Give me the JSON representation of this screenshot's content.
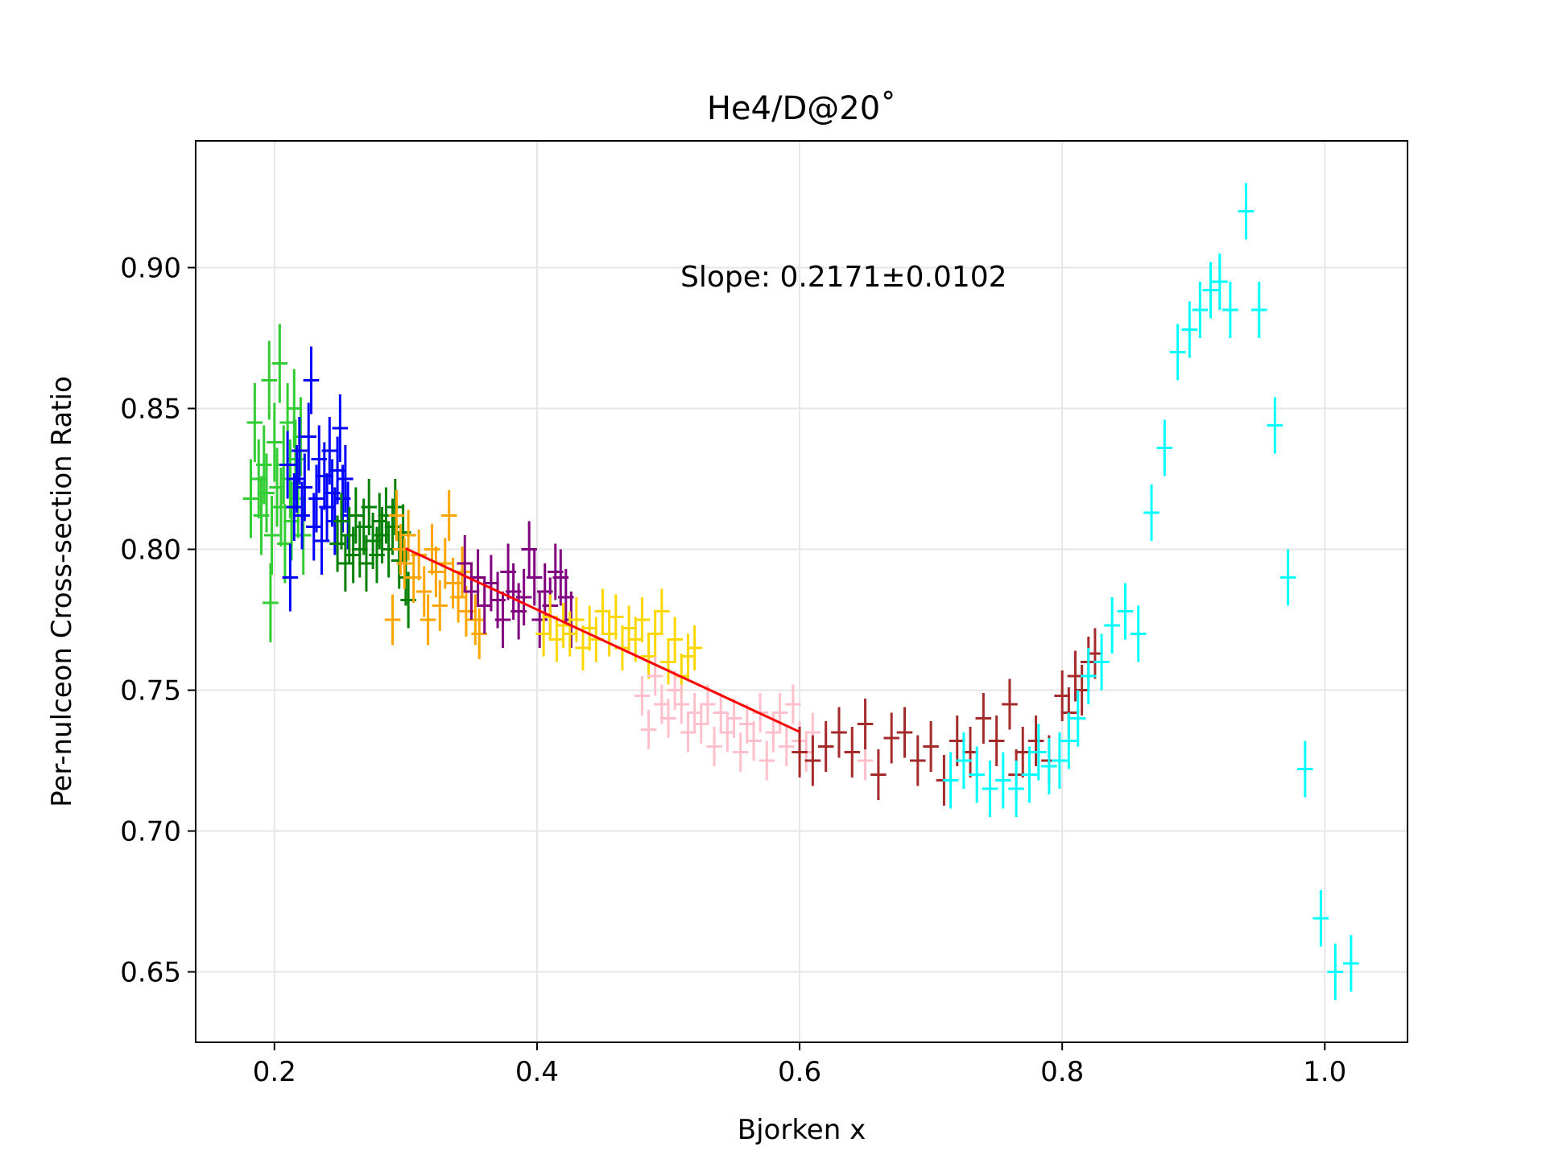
{
  "chart_data": {
    "type": "scatter",
    "title": "He4/D@20˚",
    "xlabel": "Bjorken x",
    "ylabel": "Per-nulceon Cross-section Ratio",
    "xlim": [
      0.14,
      1.063
    ],
    "ylim": [
      0.625,
      0.945
    ],
    "xticks": [
      0.2,
      0.4,
      0.6,
      0.8,
      1.0
    ],
    "xtick_labels": [
      "0.2",
      "0.4",
      "0.6",
      "0.8",
      "1.0"
    ],
    "yticks": [
      0.65,
      0.7,
      0.75,
      0.8,
      0.85,
      0.9
    ],
    "ytick_labels": [
      "0.65",
      "0.70",
      "0.75",
      "0.80",
      "0.85",
      "0.90"
    ],
    "grid": true,
    "annotation": "Slope: 0.2171±0.0102",
    "fit_line": {
      "color": "#ff0000",
      "x": [
        0.3,
        0.6
      ],
      "y": [
        0.8003,
        0.7352
      ]
    },
    "series": [
      {
        "color": "#32cd32",
        "xerr": 0.006,
        "yerr": 0.014,
        "points": [
          [
            0.182,
            0.818
          ],
          [
            0.185,
            0.845
          ],
          [
            0.188,
            0.825
          ],
          [
            0.19,
            0.812
          ],
          [
            0.192,
            0.83
          ],
          [
            0.194,
            0.82
          ],
          [
            0.196,
            0.86
          ],
          [
            0.197,
            0.781
          ],
          [
            0.198,
            0.805
          ],
          [
            0.2,
            0.838
          ],
          [
            0.202,
            0.822
          ],
          [
            0.204,
            0.866
          ],
          [
            0.205,
            0.815
          ],
          [
            0.207,
            0.83
          ],
          [
            0.208,
            0.802
          ],
          [
            0.21,
            0.845
          ],
          [
            0.212,
            0.825
          ],
          [
            0.213,
            0.81
          ],
          [
            0.215,
            0.85
          ],
          [
            0.216,
            0.832
          ],
          [
            0.218,
            0.818
          ],
          [
            0.22,
            0.84
          ],
          [
            0.222,
            0.805
          ]
        ]
      },
      {
        "color": "#0000ff",
        "xerr": 0.006,
        "yerr": 0.012,
        "points": [
          [
            0.21,
            0.83
          ],
          [
            0.212,
            0.79
          ],
          [
            0.215,
            0.815
          ],
          [
            0.217,
            0.825
          ],
          [
            0.219,
            0.835
          ],
          [
            0.221,
            0.812
          ],
          [
            0.223,
            0.822
          ],
          [
            0.226,
            0.84
          ],
          [
            0.228,
            0.86
          ],
          [
            0.23,
            0.808
          ],
          [
            0.232,
            0.818
          ],
          [
            0.234,
            0.832
          ],
          [
            0.236,
            0.803
          ],
          [
            0.238,
            0.826
          ],
          [
            0.24,
            0.815
          ],
          [
            0.242,
            0.835
          ],
          [
            0.244,
            0.82
          ],
          [
            0.246,
            0.81
          ],
          [
            0.248,
            0.828
          ],
          [
            0.25,
            0.843
          ],
          [
            0.252,
            0.818
          ],
          [
            0.254,
            0.825
          ],
          [
            0.256,
            0.812
          ]
        ]
      },
      {
        "color": "#008000",
        "xerr": 0.006,
        "yerr": 0.01,
        "points": [
          [
            0.248,
            0.802
          ],
          [
            0.251,
            0.81
          ],
          [
            0.254,
            0.795
          ],
          [
            0.257,
            0.805
          ],
          [
            0.26,
            0.798
          ],
          [
            0.262,
            0.812
          ],
          [
            0.265,
            0.8
          ],
          [
            0.268,
            0.808
          ],
          [
            0.27,
            0.795
          ],
          [
            0.272,
            0.815
          ],
          [
            0.275,
            0.803
          ],
          [
            0.278,
            0.798
          ],
          [
            0.28,
            0.81
          ],
          [
            0.282,
            0.805
          ],
          [
            0.285,
            0.812
          ],
          [
            0.287,
            0.8
          ],
          [
            0.29,
            0.808
          ],
          [
            0.292,
            0.815
          ],
          [
            0.295,
            0.796
          ],
          [
            0.298,
            0.806
          ],
          [
            0.3,
            0.79
          ],
          [
            0.302,
            0.782
          ]
        ]
      },
      {
        "color": "#ffa500",
        "xerr": 0.006,
        "yerr": 0.009,
        "points": [
          [
            0.29,
            0.775
          ],
          [
            0.293,
            0.812
          ],
          [
            0.296,
            0.8
          ],
          [
            0.299,
            0.795
          ],
          [
            0.302,
            0.805
          ],
          [
            0.306,
            0.79
          ],
          [
            0.31,
            0.798
          ],
          [
            0.314,
            0.785
          ],
          [
            0.317,
            0.775
          ],
          [
            0.32,
            0.8
          ],
          [
            0.323,
            0.792
          ],
          [
            0.326,
            0.78
          ],
          [
            0.33,
            0.795
          ],
          [
            0.333,
            0.812
          ],
          [
            0.336,
            0.788
          ],
          [
            0.34,
            0.783
          ],
          [
            0.343,
            0.792
          ],
          [
            0.346,
            0.778
          ],
          [
            0.35,
            0.785
          ],
          [
            0.353,
            0.775
          ],
          [
            0.356,
            0.77
          ]
        ]
      },
      {
        "color": "#800080",
        "xerr": 0.006,
        "yerr": 0.01,
        "points": [
          [
            0.345,
            0.795
          ],
          [
            0.35,
            0.785
          ],
          [
            0.355,
            0.79
          ],
          [
            0.36,
            0.78
          ],
          [
            0.365,
            0.788
          ],
          [
            0.37,
            0.782
          ],
          [
            0.374,
            0.775
          ],
          [
            0.378,
            0.792
          ],
          [
            0.382,
            0.785
          ],
          [
            0.386,
            0.778
          ],
          [
            0.39,
            0.783
          ],
          [
            0.394,
            0.8
          ],
          [
            0.398,
            0.79
          ],
          [
            0.402,
            0.775
          ],
          [
            0.406,
            0.785
          ],
          [
            0.41,
            0.78
          ],
          [
            0.414,
            0.792
          ],
          [
            0.418,
            0.79
          ],
          [
            0.422,
            0.783
          ],
          [
            0.426,
            0.775
          ]
        ]
      },
      {
        "color": "#ffd700",
        "xerr": 0.006,
        "yerr": 0.008,
        "points": [
          [
            0.405,
            0.77
          ],
          [
            0.41,
            0.776
          ],
          [
            0.415,
            0.768
          ],
          [
            0.42,
            0.773
          ],
          [
            0.425,
            0.77
          ],
          [
            0.43,
            0.775
          ],
          [
            0.435,
            0.765
          ],
          [
            0.44,
            0.772
          ],
          [
            0.445,
            0.768
          ],
          [
            0.45,
            0.778
          ],
          [
            0.455,
            0.77
          ],
          [
            0.46,
            0.776
          ],
          [
            0.465,
            0.765
          ],
          [
            0.47,
            0.772
          ],
          [
            0.475,
            0.768
          ],
          [
            0.48,
            0.775
          ],
          [
            0.485,
            0.762
          ],
          [
            0.49,
            0.77
          ],
          [
            0.495,
            0.778
          ],
          [
            0.5,
            0.76
          ],
          [
            0.505,
            0.768
          ],
          [
            0.51,
            0.755
          ],
          [
            0.515,
            0.762
          ],
          [
            0.52,
            0.765
          ]
        ]
      },
      {
        "color": "#ffc0cb",
        "xerr": 0.006,
        "yerr": 0.007,
        "points": [
          [
            0.48,
            0.748
          ],
          [
            0.485,
            0.736
          ],
          [
            0.49,
            0.755
          ],
          [
            0.495,
            0.745
          ],
          [
            0.5,
            0.74
          ],
          [
            0.505,
            0.75
          ],
          [
            0.51,
            0.745
          ],
          [
            0.515,
            0.735
          ],
          [
            0.52,
            0.742
          ],
          [
            0.525,
            0.738
          ],
          [
            0.53,
            0.745
          ],
          [
            0.535,
            0.73
          ],
          [
            0.54,
            0.742
          ],
          [
            0.545,
            0.735
          ],
          [
            0.55,
            0.74
          ],
          [
            0.555,
            0.728
          ],
          [
            0.56,
            0.738
          ],
          [
            0.565,
            0.732
          ],
          [
            0.57,
            0.742
          ],
          [
            0.575,
            0.725
          ],
          [
            0.58,
            0.735
          ],
          [
            0.585,
            0.742
          ],
          [
            0.59,
            0.73
          ],
          [
            0.595,
            0.745
          ],
          [
            0.6,
            0.732
          ],
          [
            0.605,
            0.728
          ],
          [
            0.61,
            0.735
          ],
          [
            0.62,
            0.73
          ],
          [
            0.63,
            0.735
          ],
          [
            0.64,
            0.728
          ],
          [
            0.65,
            0.725
          ]
        ]
      },
      {
        "color": "#a52a2a",
        "xerr": 0.006,
        "yerr": 0.009,
        "points": [
          [
            0.6,
            0.728
          ],
          [
            0.61,
            0.725
          ],
          [
            0.62,
            0.73
          ],
          [
            0.63,
            0.735
          ],
          [
            0.64,
            0.728
          ],
          [
            0.65,
            0.738
          ],
          [
            0.66,
            0.72
          ],
          [
            0.67,
            0.733
          ],
          [
            0.68,
            0.735
          ],
          [
            0.69,
            0.725
          ],
          [
            0.7,
            0.73
          ],
          [
            0.71,
            0.718
          ],
          [
            0.72,
            0.732
          ],
          [
            0.73,
            0.728
          ],
          [
            0.74,
            0.74
          ],
          [
            0.75,
            0.732
          ],
          [
            0.76,
            0.745
          ],
          [
            0.765,
            0.72
          ],
          [
            0.77,
            0.728
          ],
          [
            0.78,
            0.732
          ],
          [
            0.79,
            0.725
          ],
          [
            0.8,
            0.748
          ],
          [
            0.805,
            0.742
          ],
          [
            0.81,
            0.755
          ],
          [
            0.815,
            0.75
          ],
          [
            0.82,
            0.76
          ],
          [
            0.825,
            0.763
          ]
        ]
      },
      {
        "color": "#00ffff",
        "xerr": 0.006,
        "yerr": 0.01,
        "points": [
          [
            0.715,
            0.718
          ],
          [
            0.725,
            0.725
          ],
          [
            0.735,
            0.72
          ],
          [
            0.745,
            0.715
          ],
          [
            0.755,
            0.718
          ],
          [
            0.765,
            0.715
          ],
          [
            0.775,
            0.72
          ],
          [
            0.782,
            0.728
          ],
          [
            0.79,
            0.723
          ],
          [
            0.798,
            0.725
          ],
          [
            0.805,
            0.732
          ],
          [
            0.812,
            0.74
          ],
          [
            0.82,
            0.755
          ],
          [
            0.83,
            0.76
          ],
          [
            0.838,
            0.773
          ],
          [
            0.848,
            0.778
          ],
          [
            0.858,
            0.77
          ],
          [
            0.868,
            0.813
          ],
          [
            0.878,
            0.836
          ],
          [
            0.888,
            0.87
          ],
          [
            0.897,
            0.878
          ],
          [
            0.905,
            0.885
          ],
          [
            0.913,
            0.892
          ],
          [
            0.92,
            0.895
          ],
          [
            0.928,
            0.885
          ],
          [
            0.94,
            0.92
          ],
          [
            0.95,
            0.885
          ],
          [
            0.962,
            0.844
          ],
          [
            0.972,
            0.79
          ],
          [
            0.985,
            0.722
          ],
          [
            0.997,
            0.669
          ],
          [
            1.008,
            0.65
          ],
          [
            1.02,
            0.653
          ]
        ]
      }
    ]
  }
}
